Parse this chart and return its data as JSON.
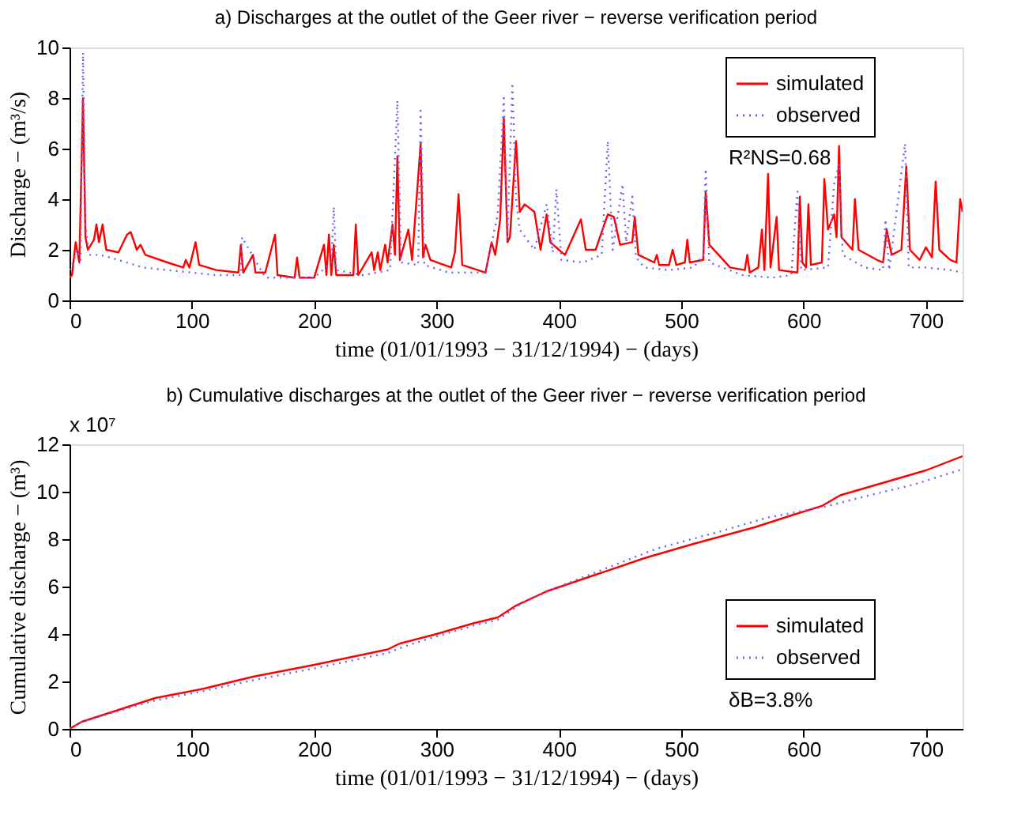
{
  "chart_data": [
    {
      "type": "line",
      "title": "a) Discharges at the outlet of the Geer river − reverse verification period",
      "xlabel": "time (01/01/1993 − 31/12/1994) − (days)",
      "ylabel": "Discharge  − (m³/s)",
      "xlim": [
        0,
        730
      ],
      "xticks": [
        0,
        100,
        200,
        300,
        400,
        500,
        600,
        700
      ],
      "ylim": [
        0,
        10
      ],
      "yticks": [
        0,
        2,
        4,
        6,
        8,
        10
      ],
      "grid": false,
      "legend": "top right",
      "marker": "none",
      "annotations": [
        "R²NS=0.68"
      ],
      "series": [
        {
          "name": "simulated",
          "color": "#ff0000",
          "line_style": "solid",
          "x": [
            0,
            2,
            5,
            8,
            11,
            13,
            15,
            20,
            22,
            24,
            27,
            30,
            40,
            47,
            50,
            55,
            58,
            62,
            80,
            93,
            95,
            98,
            103,
            106,
            120,
            138,
            140,
            142,
            150,
            152,
            160,
            168,
            170,
            184,
            186,
            188,
            200,
            208,
            210,
            212,
            214,
            216,
            218,
            232,
            234,
            236,
            247,
            249,
            252,
            254,
            258,
            260,
            264,
            266,
            268,
            270,
            277,
            280,
            287,
            289,
            291,
            295,
            312,
            315,
            318,
            321,
            340,
            345,
            348,
            352,
            355,
            358,
            360,
            365,
            368,
            372,
            380,
            385,
            390,
            393,
            400,
            405,
            418,
            422,
            430,
            440,
            445,
            450,
            460,
            462,
            465,
            478,
            480,
            482,
            490,
            493,
            496,
            503,
            505,
            507,
            518,
            520,
            523,
            540,
            552,
            554,
            556,
            563,
            566,
            568,
            571,
            573,
            578,
            580,
            595,
            597,
            599,
            602,
            604,
            606,
            615,
            617,
            620,
            625,
            627,
            629,
            631,
            640,
            642,
            645,
            660,
            665,
            668,
            672,
            680,
            684,
            687,
            695,
            700,
            705,
            708,
            711,
            720,
            725,
            728,
            730
          ],
          "values": [
            0.9,
            1.0,
            2.3,
            1.5,
            8.0,
            2.5,
            2.0,
            2.4,
            3.0,
            2.3,
            3.0,
            2.0,
            1.9,
            2.6,
            2.7,
            2.0,
            2.2,
            1.8,
            1.5,
            1.3,
            1.6,
            1.3,
            2.3,
            1.4,
            1.2,
            1.1,
            2.2,
            1.1,
            1.8,
            1.1,
            1.1,
            2.6,
            1.0,
            0.9,
            1.7,
            0.9,
            0.9,
            2.2,
            1.0,
            2.6,
            1.0,
            2.2,
            1.0,
            1.0,
            3.0,
            1.0,
            1.9,
            1.2,
            1.9,
            1.2,
            2.2,
            1.5,
            3.0,
            1.8,
            5.7,
            1.6,
            2.8,
            1.6,
            6.2,
            1.7,
            2.2,
            1.6,
            1.3,
            1.9,
            4.2,
            1.4,
            1.1,
            2.3,
            1.8,
            3.2,
            7.2,
            2.3,
            2.5,
            6.3,
            3.5,
            3.8,
            3.5,
            2.0,
            3.4,
            2.3,
            2.0,
            1.8,
            3.2,
            2.0,
            2.0,
            3.4,
            3.3,
            2.2,
            2.3,
            3.3,
            1.8,
            1.5,
            1.8,
            1.4,
            1.4,
            2.0,
            1.4,
            1.5,
            2.4,
            1.5,
            1.6,
            4.3,
            2.2,
            1.3,
            1.2,
            1.8,
            1.1,
            1.3,
            2.8,
            1.2,
            5.0,
            1.3,
            3.3,
            1.2,
            1.1,
            4.1,
            1.5,
            1.3,
            3.8,
            1.4,
            1.5,
            4.8,
            2.8,
            3.4,
            2.5,
            6.1,
            2.5,
            2.0,
            4.0,
            2.0,
            1.6,
            1.5,
            2.8,
            1.8,
            2.0,
            5.3,
            2.0,
            1.6,
            2.1,
            1.7,
            4.7,
            2.0,
            1.6,
            1.5,
            4.0,
            3.5
          ]
        },
        {
          "name": "observed",
          "color": "#6666ff",
          "line_style": "dotted",
          "x": [
            0,
            3,
            6,
            9,
            11,
            13,
            16,
            25,
            40,
            60,
            80,
            100,
            120,
            140,
            141,
            160,
            180,
            200,
            214,
            216,
            218,
            240,
            262,
            268,
            271,
            285,
            287,
            290,
            310,
            340,
            350,
            355,
            358,
            362,
            365,
            368,
            380,
            390,
            395,
            398,
            402,
            420,
            435,
            440,
            444,
            452,
            455,
            460,
            463,
            470,
            490,
            510,
            518,
            520,
            523,
            550,
            575,
            590,
            595,
            598,
            620,
            625,
            629,
            632,
            650,
            665,
            667,
            670,
            683,
            686,
            700,
            720,
            730
          ],
          "values": [
            1.2,
            1.5,
            2.0,
            1.6,
            9.8,
            3.0,
            1.8,
            1.8,
            1.6,
            1.3,
            1.2,
            1.1,
            1.0,
            1.0,
            2.5,
            0.9,
            0.9,
            0.9,
            1.5,
            3.7,
            1.2,
            1.0,
            1.2,
            7.9,
            1.5,
            1.4,
            7.5,
            1.4,
            1.1,
            1.1,
            3.4,
            8.0,
            2.5,
            8.6,
            4.0,
            2.8,
            2.0,
            3.8,
            1.9,
            4.4,
            1.6,
            1.5,
            1.8,
            6.3,
            2.0,
            4.6,
            2.3,
            4.1,
            1.7,
            1.3,
            1.2,
            1.3,
            1.8,
            5.2,
            1.5,
            1.0,
            0.9,
            1.0,
            4.3,
            1.2,
            1.3,
            4.6,
            5.4,
            1.8,
            1.3,
            1.2,
            3.2,
            1.2,
            6.2,
            1.3,
            1.3,
            1.2,
            1.1
          ]
        }
      ]
    },
    {
      "type": "line",
      "title": "b) Cumulative discharges at the outlet of the Geer river − reverse verification period",
      "xlabel": "time (01/01/1993 − 31/12/1994) − (days)",
      "ylabel": "Cumulative discharge  − (m³)",
      "xlim": [
        0,
        730
      ],
      "xticks": [
        0,
        100,
        200,
        300,
        400,
        500,
        600,
        700
      ],
      "ylim": [
        0,
        12
      ],
      "yticks": [
        0,
        2,
        4,
        6,
        8,
        10,
        12
      ],
      "grid": false,
      "legend": "bottom right",
      "marker": "none",
      "annotations": [
        "δB=3.8%",
        "x 10⁷"
      ],
      "series": [
        {
          "name": "simulated",
          "color": "#ff0000",
          "line_style": "solid",
          "x": [
            0,
            10,
            40,
            70,
            110,
            150,
            200,
            260,
            270,
            300,
            330,
            350,
            365,
            390,
            430,
            470,
            510,
            560,
            590,
            615,
            630,
            660,
            700,
            730
          ],
          "values": [
            0,
            0.3,
            0.8,
            1.3,
            1.7,
            2.2,
            2.7,
            3.35,
            3.6,
            4.0,
            4.45,
            4.7,
            5.2,
            5.8,
            6.5,
            7.2,
            7.8,
            8.5,
            9.0,
            9.4,
            9.85,
            10.3,
            10.9,
            11.5
          ]
        },
        {
          "name": "observed",
          "color": "#6666ff",
          "line_style": "dotted",
          "x": [
            0,
            10,
            40,
            70,
            110,
            150,
            200,
            260,
            275,
            300,
            330,
            350,
            370,
            400,
            440,
            480,
            530,
            570,
            600,
            620,
            650,
            690,
            730
          ],
          "values": [
            0,
            0.3,
            0.75,
            1.2,
            1.6,
            2.05,
            2.55,
            3.2,
            3.5,
            3.9,
            4.35,
            4.6,
            5.3,
            6.0,
            6.8,
            7.6,
            8.3,
            8.9,
            9.2,
            9.4,
            9.8,
            10.3,
            10.95
          ]
        }
      ]
    }
  ]
}
